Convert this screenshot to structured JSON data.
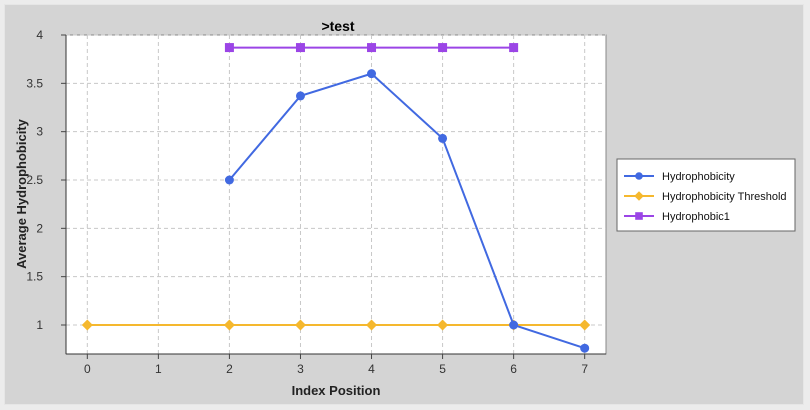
{
  "chart_data": {
    "type": "line",
    "title": ">test",
    "xlabel": "Index Position",
    "ylabel": "Average Hydrophobicity",
    "xlim": [
      -0.3,
      7.3
    ],
    "ylim": [
      0.7,
      4.0
    ],
    "x_ticks": [
      0,
      1,
      2,
      3,
      4,
      5,
      6,
      7
    ],
    "y_ticks": [
      1,
      1.5,
      2,
      2.5,
      3,
      3.5,
      4
    ],
    "x_tick_labels": [
      "0",
      "1",
      "2",
      "3",
      "4",
      "5",
      "6",
      "7"
    ],
    "y_tick_labels": [
      "1",
      "1.5",
      "2",
      "2.5",
      "3",
      "3.5",
      "4"
    ],
    "grid": true,
    "legend_position": "right",
    "series": [
      {
        "name": "Hydrophobicity",
        "color": "#4169e1",
        "marker": "circle",
        "x": [
          2,
          3,
          4,
          5,
          6,
          7
        ],
        "y": [
          2.5,
          3.37,
          3.6,
          2.93,
          1.0,
          0.76
        ]
      },
      {
        "name": "Hydrophobicity Threshold",
        "color": "#f5b82e",
        "marker": "diamond",
        "x": [
          0,
          2,
          3,
          4,
          5,
          6,
          7
        ],
        "y": [
          1.0,
          1.0,
          1.0,
          1.0,
          1.0,
          1.0,
          1.0
        ]
      },
      {
        "name": "Hydrophobic1",
        "color": "#9b45e6",
        "marker": "square",
        "x": [
          2,
          3,
          4,
          5,
          6
        ],
        "y": [
          3.87,
          3.87,
          3.87,
          3.87,
          3.87
        ]
      }
    ]
  }
}
